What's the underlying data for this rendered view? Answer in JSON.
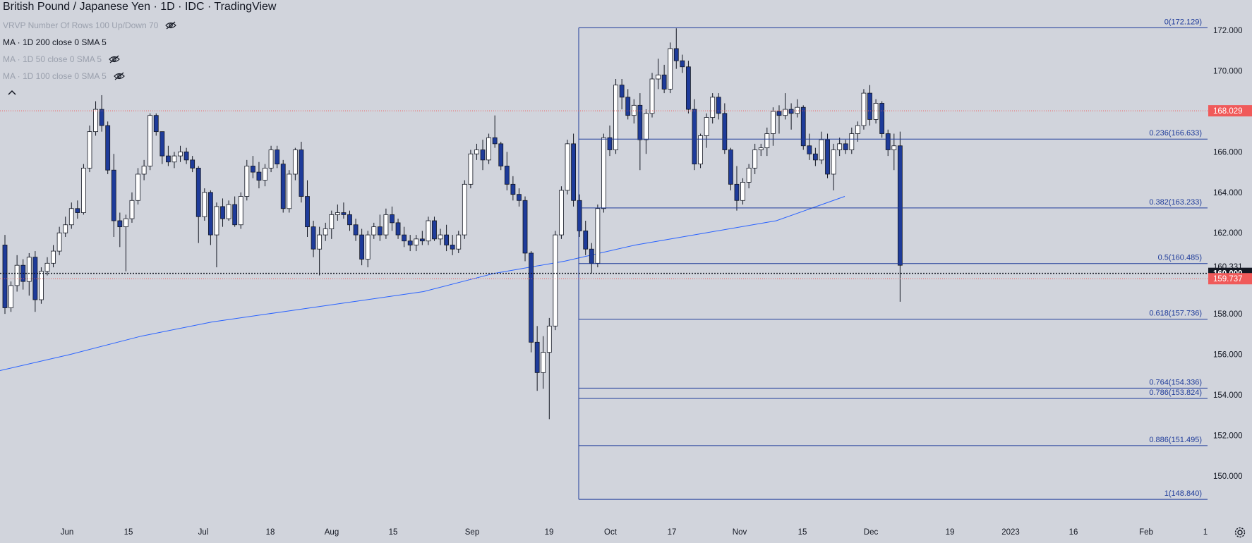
{
  "header": {
    "title": "British Pound / Japanese Yen · 1D · IDC · TradingView"
  },
  "indicators": [
    {
      "label": "VRVP Number Of Rows 100 Up/Down 70",
      "hidden": true
    },
    {
      "label": "MA · 1D 200 close 0 SMA 5",
      "hidden": false
    },
    {
      "label": "MA · 1D 50 close 0 SMA 5",
      "hidden": true
    },
    {
      "label": "MA · 1D 100 close 0 SMA 5",
      "hidden": true
    }
  ],
  "icons": [
    "eye-hidden-icon",
    "collapse-up-icon",
    "settings-gear-icon"
  ],
  "colors": {
    "background": "#d1d4dc",
    "up_candle_body": "#ffffff",
    "down_candle_body": "#1e3b9a",
    "wick": "#131722",
    "fib_line": "#1e3b9a",
    "ma_line": "#2962ff",
    "red_marker": "#f05a5a",
    "current_price_label_bg": "#131722"
  },
  "chart_data": {
    "type": "candlestick",
    "instrument": "British Pound / Japanese Yen",
    "timeframe": "1D",
    "source": "IDC",
    "ylim": [
      147.8,
      173.5
    ],
    "y_ticks": [
      "150.000",
      "152.000",
      "154.000",
      "156.000",
      "158.000",
      "160.000",
      "162.000",
      "164.000",
      "166.000",
      "168.000",
      "170.000",
      "172.000"
    ],
    "x_ticks": [
      "Jun",
      "15",
      "Jul",
      "18",
      "Aug",
      "15",
      "Sep",
      "19",
      "Oct",
      "17",
      "Nov",
      "15",
      "Dec",
      "19",
      "2023",
      "16",
      "Feb",
      "1"
    ],
    "fibonacci": [
      {
        "label": "0(172.129)",
        "level": 172.129
      },
      {
        "label": "0.236(166.633)",
        "level": 166.633
      },
      {
        "label": "0.382(163.233)",
        "level": 163.233
      },
      {
        "label": "0.5(160.485)",
        "level": 160.485
      },
      {
        "label": "0.618(157.736)",
        "level": 157.736
      },
      {
        "label": "0.764(154.336)",
        "level": 154.336
      },
      {
        "label": "0.786(153.824)",
        "level": 153.824
      },
      {
        "label": "0.886(151.495)",
        "level": 151.495
      },
      {
        "label": "1(148.840)",
        "level": 148.84
      }
    ],
    "price_labels": [
      {
        "text": "168.029",
        "value": 168.029,
        "style": "red"
      },
      {
        "text": "160.331",
        "value": 160.331,
        "style": "plain"
      },
      {
        "text": "160.000",
        "value": 160.0,
        "style": "dark"
      },
      {
        "text": "159.737",
        "value": 159.737,
        "style": "red"
      }
    ],
    "horizontal_lines": [
      {
        "value": 168.029,
        "style": "red-dotted"
      },
      {
        "value": 160.0,
        "style": "black-dotted"
      },
      {
        "value": 159.737,
        "style": "red-dotted"
      }
    ],
    "ma200": [
      [
        0,
        155.2
      ],
      [
        100,
        156.0
      ],
      [
        200,
        156.9
      ],
      [
        300,
        157.6
      ],
      [
        400,
        158.1
      ],
      [
        500,
        158.6
      ],
      [
        600,
        159.1
      ],
      [
        700,
        160.0
      ],
      [
        800,
        160.6
      ],
      [
        900,
        161.4
      ],
      [
        1000,
        162.0
      ],
      [
        1100,
        162.6
      ],
      [
        1197,
        163.8
      ]
    ],
    "candles": [
      [
        161.4,
        161.9,
        158.0,
        158.3
      ],
      [
        158.3,
        159.6,
        158.1,
        159.4
      ],
      [
        159.4,
        160.9,
        159.1,
        160.4
      ],
      [
        160.4,
        160.7,
        159.2,
        159.6
      ],
      [
        159.6,
        161.0,
        158.9,
        160.8
      ],
      [
        160.8,
        161.1,
        158.1,
        158.7
      ],
      [
        158.7,
        160.3,
        158.5,
        160.1
      ],
      [
        160.1,
        160.8,
        159.9,
        160.5
      ],
      [
        160.5,
        161.4,
        160.3,
        161.1
      ],
      [
        161.1,
        162.3,
        160.9,
        162.0
      ],
      [
        162.0,
        162.8,
        161.8,
        162.4
      ],
      [
        162.4,
        163.5,
        162.2,
        163.2
      ],
      [
        163.2,
        163.6,
        162.7,
        163.0
      ],
      [
        163.0,
        165.4,
        162.9,
        165.2
      ],
      [
        165.2,
        167.3,
        165.0,
        167.0
      ],
      [
        167.0,
        168.5,
        166.8,
        168.1
      ],
      [
        168.1,
        168.8,
        167.0,
        167.3
      ],
      [
        167.3,
        167.5,
        164.9,
        165.1
      ],
      [
        165.1,
        165.9,
        161.8,
        162.6
      ],
      [
        162.6,
        163.0,
        161.3,
        162.3
      ],
      [
        162.3,
        162.9,
        160.1,
        162.7
      ],
      [
        162.7,
        164.0,
        162.5,
        163.6
      ],
      [
        163.6,
        165.2,
        163.4,
        164.9
      ],
      [
        164.9,
        165.6,
        164.6,
        165.3
      ],
      [
        165.3,
        167.9,
        165.1,
        167.8
      ],
      [
        167.8,
        167.9,
        166.8,
        167.0
      ],
      [
        167.0,
        167.0,
        165.4,
        165.8
      ],
      [
        165.8,
        166.3,
        165.3,
        165.5
      ],
      [
        165.5,
        166.0,
        165.2,
        165.8
      ],
      [
        165.8,
        166.3,
        165.5,
        166.0
      ],
      [
        166.0,
        166.2,
        165.4,
        165.6
      ],
      [
        165.6,
        165.8,
        165.0,
        165.2
      ],
      [
        165.2,
        165.3,
        161.5,
        162.8
      ],
      [
        162.8,
        164.2,
        162.6,
        164.0
      ],
      [
        164.0,
        164.1,
        161.4,
        161.9
      ],
      [
        161.9,
        163.5,
        160.3,
        163.3
      ],
      [
        163.3,
        163.7,
        162.3,
        162.7
      ],
      [
        162.7,
        163.6,
        162.6,
        163.4
      ],
      [
        163.4,
        163.8,
        162.3,
        162.4
      ],
      [
        162.4,
        164.0,
        162.2,
        163.8
      ],
      [
        163.8,
        165.6,
        163.6,
        165.3
      ],
      [
        165.3,
        165.8,
        164.7,
        165.0
      ],
      [
        165.0,
        165.5,
        164.2,
        164.6
      ],
      [
        164.6,
        165.4,
        164.3,
        165.2
      ],
      [
        165.2,
        166.3,
        165.0,
        166.1
      ],
      [
        166.1,
        166.3,
        165.2,
        165.4
      ],
      [
        165.4,
        165.6,
        163.0,
        163.2
      ],
      [
        163.2,
        165.1,
        163.0,
        164.9
      ],
      [
        164.9,
        166.2,
        164.6,
        166.1
      ],
      [
        166.1,
        166.5,
        163.5,
        163.8
      ],
      [
        163.8,
        164.6,
        161.8,
        162.3
      ],
      [
        162.3,
        162.6,
        160.8,
        161.2
      ],
      [
        161.2,
        162.3,
        159.9,
        161.9
      ],
      [
        161.9,
        162.5,
        161.6,
        162.2
      ],
      [
        162.2,
        163.1,
        161.7,
        162.9
      ],
      [
        162.9,
        163.4,
        162.6,
        163.0
      ],
      [
        163.0,
        163.5,
        162.7,
        162.9
      ],
      [
        162.9,
        163.1,
        162.1,
        162.4
      ],
      [
        162.4,
        162.7,
        161.6,
        161.9
      ],
      [
        161.9,
        162.2,
        160.4,
        160.7
      ],
      [
        160.7,
        162.1,
        160.3,
        161.9
      ],
      [
        161.9,
        162.5,
        161.7,
        162.3
      ],
      [
        162.3,
        162.9,
        161.6,
        161.9
      ],
      [
        161.9,
        163.2,
        161.7,
        162.9
      ],
      [
        162.9,
        163.3,
        162.1,
        162.5
      ],
      [
        162.5,
        162.7,
        161.7,
        161.9
      ],
      [
        161.9,
        162.3,
        161.3,
        161.6
      ],
      [
        161.6,
        161.9,
        161.1,
        161.4
      ],
      [
        161.4,
        161.9,
        161.1,
        161.7
      ],
      [
        161.7,
        162.1,
        161.4,
        161.6
      ],
      [
        161.6,
        162.8,
        161.4,
        162.6
      ],
      [
        162.6,
        162.8,
        161.6,
        161.7
      ],
      [
        161.7,
        162.2,
        161.4,
        161.9
      ],
      [
        161.9,
        162.4,
        161.1,
        161.4
      ],
      [
        161.4,
        161.9,
        160.9,
        161.2
      ],
      [
        161.2,
        162.1,
        161.0,
        161.9
      ],
      [
        161.9,
        164.6,
        161.7,
        164.4
      ],
      [
        164.4,
        166.1,
        164.2,
        165.9
      ],
      [
        165.9,
        166.4,
        165.6,
        166.1
      ],
      [
        166.1,
        166.6,
        165.1,
        165.6
      ],
      [
        165.6,
        166.9,
        165.4,
        166.7
      ],
      [
        166.7,
        167.8,
        166.2,
        166.4
      ],
      [
        166.4,
        166.5,
        165.1,
        165.3
      ],
      [
        165.3,
        166.0,
        164.1,
        164.4
      ],
      [
        164.4,
        164.8,
        163.6,
        163.9
      ],
      [
        163.9,
        164.2,
        163.3,
        163.6
      ],
      [
        163.6,
        163.8,
        160.6,
        161.0
      ],
      [
        161.0,
        161.1,
        156.1,
        156.6
      ],
      [
        156.6,
        157.4,
        154.2,
        155.1
      ],
      [
        155.1,
        156.9,
        154.3,
        156.1
      ],
      [
        156.1,
        157.8,
        152.8,
        157.4
      ],
      [
        157.4,
        162.1,
        157.2,
        161.9
      ],
      [
        161.9,
        164.3,
        161.7,
        164.1
      ],
      [
        164.1,
        166.6,
        163.9,
        166.4
      ],
      [
        166.4,
        166.9,
        163.3,
        163.6
      ],
      [
        163.6,
        163.9,
        161.8,
        162.1
      ],
      [
        162.1,
        162.6,
        160.9,
        161.2
      ],
      [
        161.2,
        161.5,
        160.0,
        160.5
      ],
      [
        160.5,
        163.4,
        160.3,
        163.2
      ],
      [
        163.2,
        166.9,
        163.0,
        166.7
      ],
      [
        166.7,
        167.3,
        165.8,
        166.1
      ],
      [
        166.1,
        169.6,
        165.9,
        169.3
      ],
      [
        169.3,
        169.6,
        168.1,
        168.7
      ],
      [
        168.7,
        169.1,
        167.6,
        167.8
      ],
      [
        167.8,
        168.6,
        167.4,
        168.3
      ],
      [
        168.3,
        168.9,
        165.1,
        166.6
      ],
      [
        166.6,
        168.1,
        165.9,
        167.9
      ],
      [
        167.9,
        169.9,
        167.7,
        169.6
      ],
      [
        169.6,
        170.6,
        169.1,
        169.8
      ],
      [
        169.8,
        170.3,
        168.9,
        169.1
      ],
      [
        169.1,
        171.4,
        168.9,
        171.1
      ],
      [
        171.1,
        172.1,
        170.1,
        170.5
      ],
      [
        170.5,
        170.8,
        169.9,
        170.2
      ],
      [
        170.2,
        170.5,
        167.9,
        168.1
      ],
      [
        168.1,
        168.6,
        165.1,
        165.4
      ],
      [
        165.4,
        166.9,
        165.2,
        166.8
      ],
      [
        166.8,
        167.9,
        166.2,
        167.7
      ],
      [
        167.7,
        168.9,
        167.4,
        168.7
      ],
      [
        168.7,
        168.9,
        167.6,
        167.9
      ],
      [
        167.9,
        168.4,
        165.9,
        166.1
      ],
      [
        166.1,
        166.2,
        164.1,
        164.4
      ],
      [
        164.4,
        165.3,
        163.1,
        163.6
      ],
      [
        163.6,
        164.7,
        163.4,
        164.5
      ],
      [
        164.5,
        165.4,
        164.2,
        165.2
      ],
      [
        165.2,
        166.4,
        164.9,
        166.1
      ],
      [
        166.1,
        166.4,
        165.8,
        166.2
      ],
      [
        166.2,
        167.2,
        165.8,
        166.9
      ],
      [
        166.9,
        168.2,
        166.3,
        168.0
      ],
      [
        168.0,
        168.3,
        166.9,
        167.8
      ],
      [
        167.8,
        168.9,
        167.6,
        168.1
      ],
      [
        168.1,
        168.4,
        167.1,
        167.9
      ],
      [
        167.9,
        168.6,
        167.7,
        168.2
      ],
      [
        168.2,
        168.3,
        166.1,
        166.3
      ],
      [
        166.3,
        166.9,
        165.6,
        165.9
      ],
      [
        165.9,
        166.2,
        165.3,
        165.6
      ],
      [
        165.6,
        167.0,
        165.4,
        166.6
      ],
      [
        166.6,
        166.9,
        164.7,
        164.9
      ],
      [
        164.9,
        166.4,
        164.1,
        166.1
      ],
      [
        166.1,
        166.7,
        165.8,
        166.4
      ],
      [
        166.4,
        166.6,
        165.9,
        166.1
      ],
      [
        166.1,
        167.2,
        165.9,
        166.9
      ],
      [
        166.9,
        167.5,
        166.5,
        167.3
      ],
      [
        167.3,
        169.1,
        167.1,
        168.9
      ],
      [
        168.9,
        169.3,
        167.3,
        167.6
      ],
      [
        167.6,
        168.6,
        167.4,
        168.4
      ],
      [
        168.4,
        168.5,
        166.7,
        166.9
      ],
      [
        166.9,
        167.1,
        165.8,
        166.1
      ],
      [
        166.1,
        166.9,
        165.1,
        166.3
      ],
      [
        166.3,
        167.0,
        158.6,
        160.4
      ]
    ]
  }
}
